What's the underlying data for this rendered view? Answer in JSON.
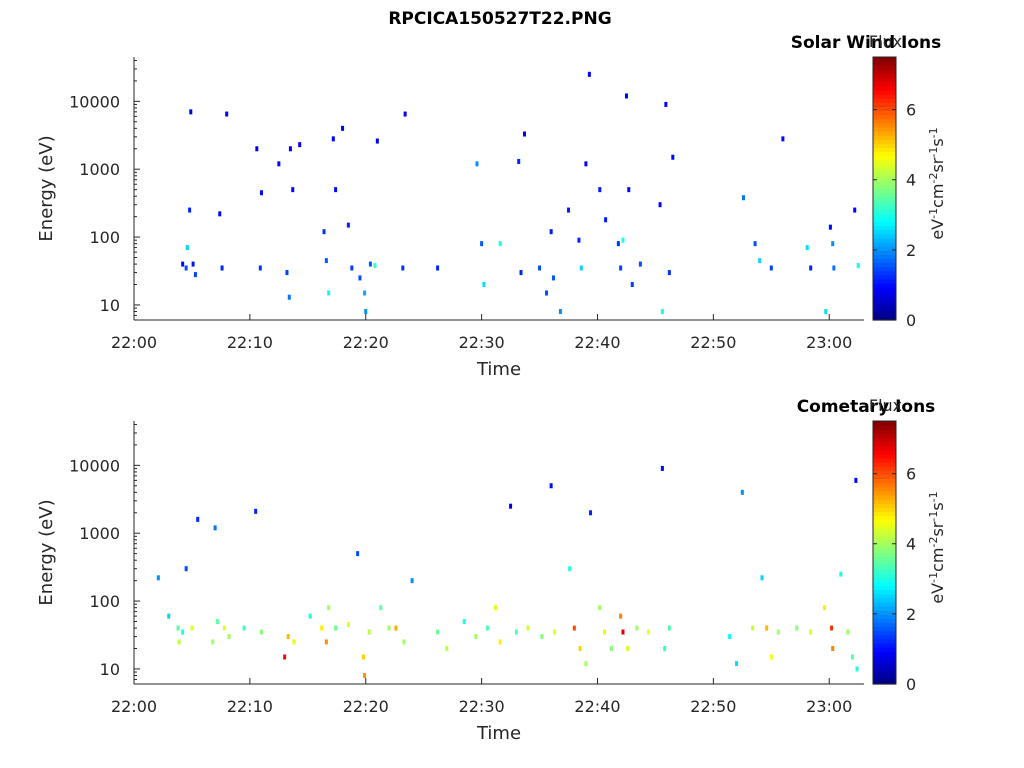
{
  "figure": {
    "title": "RPCICA150527T22.PNG"
  },
  "colorbar": {
    "label": "Flux",
    "unit_base": [
      "eV",
      "cm",
      "sr",
      "s"
    ],
    "unit_exp": [
      "-1",
      "-2",
      "-1",
      "-1"
    ],
    "ticks": [
      "0",
      "2",
      "4",
      "6"
    ],
    "range": [
      0,
      7.5
    ],
    "colormap": "jet"
  },
  "chart_data": [
    {
      "type": "heatmap",
      "title": "Solar Wind Ions",
      "xlabel": "Time",
      "ylabel": "Energy (eV)",
      "x_ticks": [
        "22:00",
        "22:10",
        "22:20",
        "22:30",
        "22:40",
        "22:50",
        "23:00"
      ],
      "y_ticks": [
        "10",
        "100",
        "1000",
        "10000"
      ],
      "xlim": [
        "22:00",
        "23:03"
      ],
      "ylim": [
        6,
        45000
      ],
      "yscale": "log",
      "points": [
        {
          "t": 4.2,
          "e": 40,
          "v": 1.0
        },
        {
          "t": 4.5,
          "e": 35,
          "v": 1.5
        },
        {
          "t": 4.6,
          "e": 70,
          "v": 2.5
        },
        {
          "t": 4.8,
          "e": 250,
          "v": 1.2
        },
        {
          "t": 4.9,
          "e": 7000,
          "v": 0.8
        },
        {
          "t": 5.1,
          "e": 40,
          "v": 1.1
        },
        {
          "t": 5.3,
          "e": 28,
          "v": 1.4
        },
        {
          "t": 7.4,
          "e": 220,
          "v": 1.0
        },
        {
          "t": 7.6,
          "e": 35,
          "v": 1.2
        },
        {
          "t": 8.0,
          "e": 6500,
          "v": 0.9
        },
        {
          "t": 10.6,
          "e": 2000,
          "v": 0.8
        },
        {
          "t": 10.9,
          "e": 35,
          "v": 1.3
        },
        {
          "t": 11.0,
          "e": 450,
          "v": 1.0
        },
        {
          "t": 12.5,
          "e": 1200,
          "v": 1.0
        },
        {
          "t": 13.2,
          "e": 30,
          "v": 1.4
        },
        {
          "t": 13.4,
          "e": 13,
          "v": 1.8
        },
        {
          "t": 13.5,
          "e": 2000,
          "v": 0.9
        },
        {
          "t": 13.7,
          "e": 500,
          "v": 1.0
        },
        {
          "t": 14.3,
          "e": 2300,
          "v": 0.8
        },
        {
          "t": 16.4,
          "e": 120,
          "v": 1.3
        },
        {
          "t": 16.6,
          "e": 45,
          "v": 1.6
        },
        {
          "t": 16.8,
          "e": 15,
          "v": 2.8
        },
        {
          "t": 17.2,
          "e": 2800,
          "v": 0.9
        },
        {
          "t": 17.4,
          "e": 500,
          "v": 1.0
        },
        {
          "t": 18.0,
          "e": 4000,
          "v": 0.9
        },
        {
          "t": 18.5,
          "e": 150,
          "v": 1.2
        },
        {
          "t": 18.8,
          "e": 35,
          "v": 1.4
        },
        {
          "t": 19.5,
          "e": 25,
          "v": 1.5
        },
        {
          "t": 19.9,
          "e": 15,
          "v": 2.2
        },
        {
          "t": 20.0,
          "e": 8,
          "v": 2.0
        },
        {
          "t": 20.4,
          "e": 40,
          "v": 1.6
        },
        {
          "t": 20.8,
          "e": 38,
          "v": 3.2
        },
        {
          "t": 21.0,
          "e": 2600,
          "v": 0.9
        },
        {
          "t": 23.2,
          "e": 35,
          "v": 1.3
        },
        {
          "t": 23.4,
          "e": 6500,
          "v": 0.9
        },
        {
          "t": 26.2,
          "e": 35,
          "v": 1.2
        },
        {
          "t": 29.6,
          "e": 1200,
          "v": 2.0
        },
        {
          "t": 30.0,
          "e": 80,
          "v": 1.6
        },
        {
          "t": 30.2,
          "e": 20,
          "v": 2.6
        },
        {
          "t": 31.6,
          "e": 80,
          "v": 3.0
        },
        {
          "t": 33.2,
          "e": 1300,
          "v": 1.2
        },
        {
          "t": 33.4,
          "e": 30,
          "v": 1.2
        },
        {
          "t": 33.7,
          "e": 3300,
          "v": 0.9
        },
        {
          "t": 35.0,
          "e": 35,
          "v": 1.5
        },
        {
          "t": 35.6,
          "e": 15,
          "v": 1.5
        },
        {
          "t": 36.0,
          "e": 120,
          "v": 1.1
        },
        {
          "t": 36.2,
          "e": 25,
          "v": 1.6
        },
        {
          "t": 36.8,
          "e": 8,
          "v": 2.0
        },
        {
          "t": 37.5,
          "e": 250,
          "v": 1.1
        },
        {
          "t": 38.4,
          "e": 90,
          "v": 1.2
        },
        {
          "t": 38.6,
          "e": 35,
          "v": 2.5
        },
        {
          "t": 39.0,
          "e": 1200,
          "v": 0.9
        },
        {
          "t": 39.3,
          "e": 25000,
          "v": 0.9
        },
        {
          "t": 40.2,
          "e": 500,
          "v": 1.1
        },
        {
          "t": 40.7,
          "e": 180,
          "v": 1.1
        },
        {
          "t": 41.8,
          "e": 80,
          "v": 1.3
        },
        {
          "t": 42.0,
          "e": 35,
          "v": 1.4
        },
        {
          "t": 42.2,
          "e": 90,
          "v": 3.0
        },
        {
          "t": 42.5,
          "e": 12000,
          "v": 0.8
        },
        {
          "t": 42.7,
          "e": 500,
          "v": 1.0
        },
        {
          "t": 43.0,
          "e": 20,
          "v": 1.4
        },
        {
          "t": 43.7,
          "e": 40,
          "v": 1.5
        },
        {
          "t": 45.4,
          "e": 300,
          "v": 1.0
        },
        {
          "t": 45.6,
          "e": 8,
          "v": 3.0
        },
        {
          "t": 45.9,
          "e": 9000,
          "v": 0.9
        },
        {
          "t": 46.2,
          "e": 30,
          "v": 1.3
        },
        {
          "t": 46.5,
          "e": 1500,
          "v": 1.0
        },
        {
          "t": 52.6,
          "e": 380,
          "v": 1.8
        },
        {
          "t": 53.6,
          "e": 80,
          "v": 1.5
        },
        {
          "t": 54.0,
          "e": 45,
          "v": 2.5
        },
        {
          "t": 55.0,
          "e": 35,
          "v": 1.4
        },
        {
          "t": 56.0,
          "e": 2800,
          "v": 1.0
        },
        {
          "t": 58.1,
          "e": 70,
          "v": 2.6
        },
        {
          "t": 58.4,
          "e": 35,
          "v": 1.2
        },
        {
          "t": 59.7,
          "e": 8,
          "v": 2.6
        },
        {
          "t": 60.1,
          "e": 140,
          "v": 1.0
        },
        {
          "t": 60.3,
          "e": 80,
          "v": 2.0
        },
        {
          "t": 60.4,
          "e": 35,
          "v": 1.8
        },
        {
          "t": 62.2,
          "e": 250,
          "v": 0.9
        },
        {
          "t": 62.5,
          "e": 38,
          "v": 3.0
        }
      ]
    },
    {
      "type": "heatmap",
      "title": "Cometary Ions",
      "xlabel": "Time",
      "ylabel": "Energy (eV)",
      "x_ticks": [
        "22:00",
        "22:10",
        "22:20",
        "22:30",
        "22:40",
        "22:50",
        "23:00"
      ],
      "y_ticks": [
        "10",
        "100",
        "1000",
        "10000"
      ],
      "xlim": [
        "22:00",
        "23:03"
      ],
      "ylim": [
        6,
        45000
      ],
      "yscale": "log",
      "points": [
        {
          "t": 2.1,
          "e": 220,
          "v": 2.0
        },
        {
          "t": 3.0,
          "e": 60,
          "v": 2.5
        },
        {
          "t": 3.8,
          "e": 40,
          "v": 3.5
        },
        {
          "t": 3.9,
          "e": 25,
          "v": 4.2
        },
        {
          "t": 4.2,
          "e": 35,
          "v": 3.0
        },
        {
          "t": 4.5,
          "e": 300,
          "v": 1.5
        },
        {
          "t": 5.0,
          "e": 40,
          "v": 4.5
        },
        {
          "t": 5.5,
          "e": 1600,
          "v": 1.2
        },
        {
          "t": 6.8,
          "e": 25,
          "v": 4.0
        },
        {
          "t": 7.0,
          "e": 1200,
          "v": 1.8
        },
        {
          "t": 7.2,
          "e": 50,
          "v": 3.5
        },
        {
          "t": 7.8,
          "e": 40,
          "v": 4.5
        },
        {
          "t": 8.2,
          "e": 30,
          "v": 4.0
        },
        {
          "t": 9.5,
          "e": 40,
          "v": 3.3
        },
        {
          "t": 10.5,
          "e": 2100,
          "v": 1.2
        },
        {
          "t": 11.0,
          "e": 35,
          "v": 3.8
        },
        {
          "t": 13.0,
          "e": 15,
          "v": 6.5
        },
        {
          "t": 13.3,
          "e": 30,
          "v": 5.2
        },
        {
          "t": 13.8,
          "e": 25,
          "v": 4.5
        },
        {
          "t": 15.2,
          "e": 60,
          "v": 3.0
        },
        {
          "t": 16.2,
          "e": 40,
          "v": 4.8
        },
        {
          "t": 16.6,
          "e": 25,
          "v": 5.5
        },
        {
          "t": 16.8,
          "e": 80,
          "v": 4.0
        },
        {
          "t": 17.4,
          "e": 40,
          "v": 3.6
        },
        {
          "t": 18.5,
          "e": 45,
          "v": 4.4
        },
        {
          "t": 19.3,
          "e": 500,
          "v": 1.5
        },
        {
          "t": 19.8,
          "e": 15,
          "v": 5.0
        },
        {
          "t": 19.9,
          "e": 8,
          "v": 5.5
        },
        {
          "t": 20.3,
          "e": 35,
          "v": 4.2
        },
        {
          "t": 21.3,
          "e": 80,
          "v": 3.5
        },
        {
          "t": 22.0,
          "e": 40,
          "v": 4.0
        },
        {
          "t": 22.6,
          "e": 40,
          "v": 5.3
        },
        {
          "t": 23.3,
          "e": 25,
          "v": 4.0
        },
        {
          "t": 24.0,
          "e": 200,
          "v": 2.0
        },
        {
          "t": 26.2,
          "e": 35,
          "v": 3.6
        },
        {
          "t": 27.0,
          "e": 20,
          "v": 4.2
        },
        {
          "t": 28.5,
          "e": 50,
          "v": 3.0
        },
        {
          "t": 29.5,
          "e": 30,
          "v": 4.0
        },
        {
          "t": 30.5,
          "e": 40,
          "v": 3.4
        },
        {
          "t": 31.2,
          "e": 80,
          "v": 4.5
        },
        {
          "t": 31.6,
          "e": 25,
          "v": 4.8
        },
        {
          "t": 32.5,
          "e": 2500,
          "v": 0.8
        },
        {
          "t": 33.0,
          "e": 35,
          "v": 3.4
        },
        {
          "t": 34.0,
          "e": 40,
          "v": 4.3
        },
        {
          "t": 35.2,
          "e": 30,
          "v": 3.8
        },
        {
          "t": 36.0,
          "e": 5000,
          "v": 1.0
        },
        {
          "t": 36.3,
          "e": 35,
          "v": 4.5
        },
        {
          "t": 37.6,
          "e": 300,
          "v": 3.0
        },
        {
          "t": 38.0,
          "e": 40,
          "v": 6.0
        },
        {
          "t": 38.5,
          "e": 20,
          "v": 5.0
        },
        {
          "t": 39.0,
          "e": 12,
          "v": 4.0
        },
        {
          "t": 39.4,
          "e": 2000,
          "v": 1.2
        },
        {
          "t": 40.2,
          "e": 80,
          "v": 4.0
        },
        {
          "t": 40.6,
          "e": 35,
          "v": 4.8
        },
        {
          "t": 41.2,
          "e": 20,
          "v": 3.8
        },
        {
          "t": 42.0,
          "e": 60,
          "v": 5.6
        },
        {
          "t": 42.2,
          "e": 35,
          "v": 6.8
        },
        {
          "t": 42.6,
          "e": 20,
          "v": 4.4
        },
        {
          "t": 43.4,
          "e": 40,
          "v": 4.0
        },
        {
          "t": 44.4,
          "e": 35,
          "v": 4.6
        },
        {
          "t": 45.6,
          "e": 9000,
          "v": 1.0
        },
        {
          "t": 45.8,
          "e": 20,
          "v": 3.2
        },
        {
          "t": 46.2,
          "e": 40,
          "v": 3.4
        },
        {
          "t": 51.4,
          "e": 30,
          "v": 2.8
        },
        {
          "t": 52.0,
          "e": 12,
          "v": 2.6
        },
        {
          "t": 52.5,
          "e": 4000,
          "v": 2.0
        },
        {
          "t": 53.4,
          "e": 40,
          "v": 4.3
        },
        {
          "t": 54.2,
          "e": 220,
          "v": 2.5
        },
        {
          "t": 54.6,
          "e": 40,
          "v": 5.2
        },
        {
          "t": 55.0,
          "e": 15,
          "v": 4.6
        },
        {
          "t": 55.6,
          "e": 35,
          "v": 4.0
        },
        {
          "t": 57.2,
          "e": 40,
          "v": 3.8
        },
        {
          "t": 58.4,
          "e": 35,
          "v": 4.4
        },
        {
          "t": 59.6,
          "e": 80,
          "v": 4.8
        },
        {
          "t": 60.2,
          "e": 40,
          "v": 6.2
        },
        {
          "t": 60.3,
          "e": 20,
          "v": 5.6
        },
        {
          "t": 61.0,
          "e": 250,
          "v": 3.0
        },
        {
          "t": 61.6,
          "e": 35,
          "v": 4.0
        },
        {
          "t": 62.0,
          "e": 15,
          "v": 3.4
        },
        {
          "t": 62.3,
          "e": 6000,
          "v": 1.0
        },
        {
          "t": 62.4,
          "e": 10,
          "v": 3.0
        }
      ]
    }
  ]
}
